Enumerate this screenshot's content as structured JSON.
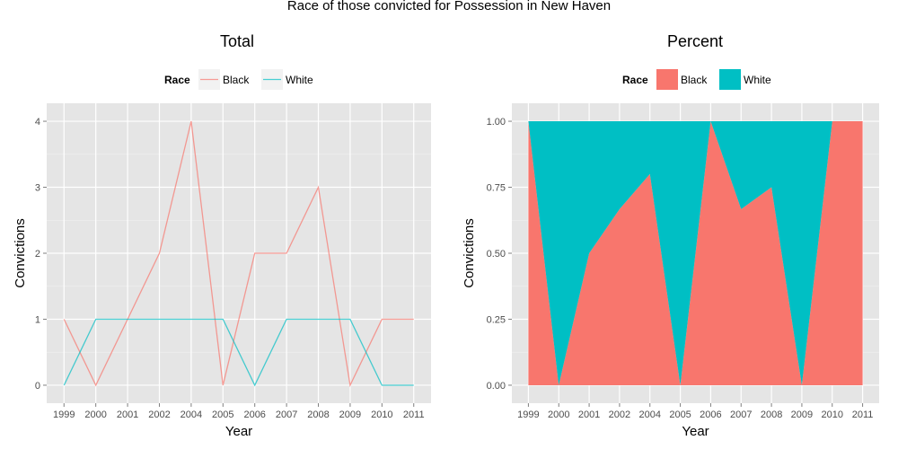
{
  "figure": {
    "title": "Race of those convicted for Possession in New Haven"
  },
  "chart_data": [
    {
      "type": "line",
      "title": "Total",
      "xlabel": "Year",
      "ylabel": "Convictions",
      "legend": {
        "title": "Race",
        "position": "top"
      },
      "categories": [
        "1999",
        "2000",
        "2001",
        "2002",
        "2004",
        "2005",
        "2006",
        "2007",
        "2008",
        "2009",
        "2010",
        "2011"
      ],
      "ylim": [
        0,
        4
      ],
      "yticks": [
        "0",
        "1",
        "2",
        "3",
        "4"
      ],
      "grid": true,
      "series": [
        {
          "name": "Black",
          "color": "#F8766D",
          "values": [
            1,
            0,
            1,
            2,
            4,
            0,
            2,
            2,
            3,
            0,
            1,
            1
          ]
        },
        {
          "name": "White",
          "color": "#00BFC4",
          "values": [
            0,
            1,
            1,
            1,
            1,
            1,
            0,
            1,
            1,
            1,
            0,
            0
          ]
        }
      ]
    },
    {
      "type": "area",
      "title": "Percent",
      "xlabel": "Year",
      "ylabel": "Convictions",
      "legend": {
        "title": "Race",
        "position": "top"
      },
      "categories": [
        "1999",
        "2000",
        "2001",
        "2002",
        "2004",
        "2005",
        "2006",
        "2007",
        "2008",
        "2009",
        "2010",
        "2011"
      ],
      "ylim": [
        0,
        1
      ],
      "yticks": [
        "0.00",
        "0.25",
        "0.50",
        "0.75",
        "1.00"
      ],
      "stacked": true,
      "grid": true,
      "series": [
        {
          "name": "Black",
          "color": "#F8766D",
          "values": [
            1,
            0,
            0.5,
            0.667,
            0.8,
            0,
            1,
            0.667,
            0.75,
            0,
            1,
            1
          ]
        },
        {
          "name": "White",
          "color": "#00BFC4",
          "values": [
            0,
            1,
            0.5,
            0.333,
            0.2,
            1,
            0,
            0.333,
            0.25,
            1,
            0,
            0
          ]
        }
      ]
    }
  ]
}
